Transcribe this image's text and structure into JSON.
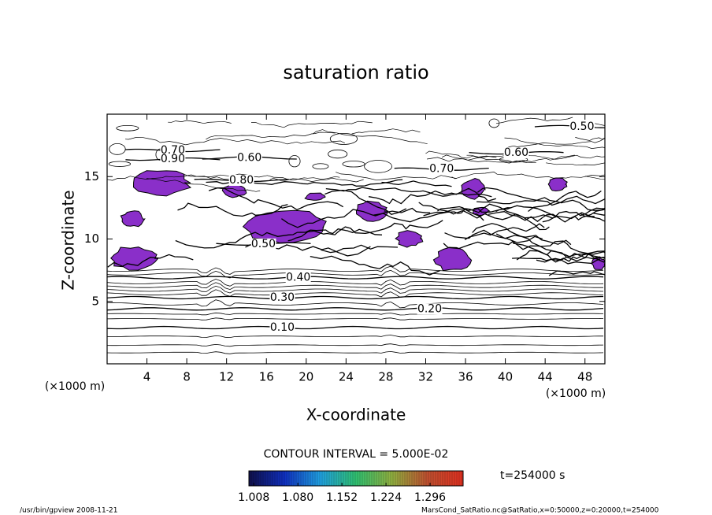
{
  "chart_data": {
    "type": "contour",
    "title": "saturation ratio",
    "x_label": "X-coordinate",
    "y_label": "Z-coordinate",
    "x_unit_label": "(×1000 m)",
    "x_unit_label_right": "(×1000 m)",
    "xlim": [
      0,
      50
    ],
    "ylim": [
      0,
      20
    ],
    "xticks": [
      4,
      8,
      12,
      16,
      20,
      24,
      28,
      32,
      36,
      40,
      44,
      48
    ],
    "yticks": [
      5,
      10,
      15
    ],
    "contour_labels": [
      {
        "value": 0.1,
        "label": "0.10",
        "x": 17.6,
        "z": 2.9
      },
      {
        "value": 0.2,
        "label": "0.20",
        "x": 32.4,
        "z": 4.4
      },
      {
        "value": 0.3,
        "label": "0.30",
        "x": 17.6,
        "z": 5.3
      },
      {
        "value": 0.4,
        "label": "0.40",
        "x": 19.2,
        "z": 6.9
      },
      {
        "value": 0.5,
        "label": "0.50",
        "x": 15.7,
        "z": 9.6
      },
      {
        "value": 0.5,
        "label": "0.50",
        "x": 47.7,
        "z": 19.0
      },
      {
        "value": 0.6,
        "label": "0.60",
        "x": 41.1,
        "z": 16.9
      },
      {
        "value": 0.6,
        "label": "0.60",
        "x": 14.3,
        "z": 16.5
      },
      {
        "value": 0.7,
        "label": "0.70",
        "x": 6.6,
        "z": 17.1
      },
      {
        "value": 0.7,
        "label": "0.70",
        "x": 33.6,
        "z": 15.6
      },
      {
        "value": 0.8,
        "label": "0.80",
        "x": 13.5,
        "z": 14.7
      },
      {
        "value": 0.9,
        "label": "0.90",
        "x": 6.6,
        "z": 16.4
      }
    ],
    "contour_interval_text": "CONTOUR INTERVAL = 5.000E-02",
    "fill_color": "#8a2fc9",
    "colorbar": {
      "clim": [
        1.0,
        1.35
      ],
      "colors": [
        "#10104a",
        "#1030c0",
        "#20a0e0",
        "#30c070",
        "#90b040",
        "#c05030",
        "#e03020"
      ],
      "ticks": [
        1.008,
        {
          "value": 1.08,
          "label": "1.080"
        },
        1.152,
        1.224,
        1.296
      ]
    },
    "time_text": "t=254000 s",
    "footer_left": "/usr/bin/gpview  2008-11-21",
    "footer_right": "MarsCond_SatRatio.nc@SatRatio,x=0:50000,z=0:20000,t=254000"
  }
}
